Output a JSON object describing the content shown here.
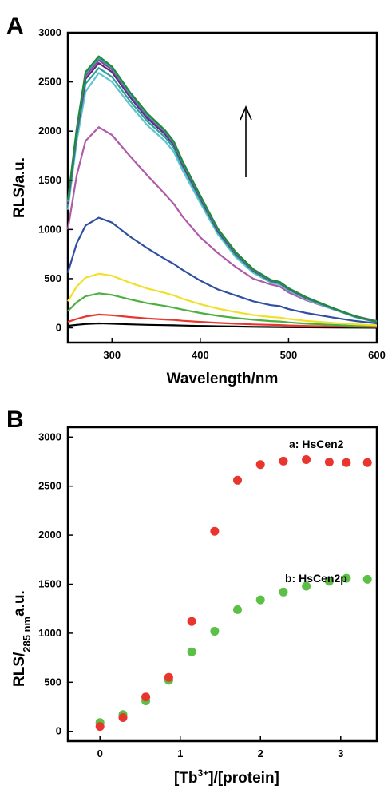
{
  "chart_data": [
    {
      "panel": "A",
      "type": "line",
      "xlabel": "Wavelength/nm",
      "ylabel": "RLS/a.u.",
      "xlim": [
        250,
        600
      ],
      "ylim": [
        -150,
        3000
      ],
      "xticks": [
        300,
        400,
        500,
        600
      ],
      "yticks": [
        0,
        500,
        1000,
        1500,
        2000,
        2500,
        3000
      ],
      "x": [
        250,
        260,
        270,
        285,
        300,
        320,
        340,
        360,
        370,
        380,
        400,
        420,
        440,
        460,
        480,
        490,
        500,
        520,
        550,
        575,
        600
      ],
      "series": [
        {
          "color": "#000000",
          "values": [
            20,
            30,
            38,
            45,
            42,
            35,
            30,
            27,
            25,
            23,
            19,
            16,
            13,
            10,
            8,
            7,
            6,
            5,
            3,
            2,
            1
          ]
        },
        {
          "color": "#e8352e",
          "values": [
            60,
            90,
            115,
            135,
            128,
            110,
            95,
            85,
            80,
            72,
            60,
            50,
            42,
            34,
            30,
            28,
            24,
            19,
            14,
            10,
            7
          ]
        },
        {
          "color": "#4caf3f",
          "values": [
            170,
            260,
            320,
            350,
            335,
            290,
            250,
            222,
            205,
            185,
            150,
            122,
            100,
            82,
            68,
            64,
            55,
            42,
            30,
            20,
            14
          ]
        },
        {
          "color": "#f0e02a",
          "values": [
            270,
            420,
            510,
            550,
            530,
            460,
            400,
            355,
            330,
            295,
            240,
            195,
            160,
            130,
            110,
            104,
            90,
            70,
            50,
            35,
            25
          ]
        },
        {
          "color": "#2f4fa0",
          "values": [
            560,
            860,
            1040,
            1120,
            1070,
            930,
            810,
            700,
            650,
            590,
            480,
            390,
            330,
            270,
            230,
            220,
            190,
            150,
            105,
            70,
            45
          ]
        },
        {
          "color": "#b05aa8",
          "values": [
            1000,
            1550,
            1900,
            2040,
            1960,
            1750,
            1550,
            1360,
            1260,
            1130,
            920,
            760,
            620,
            500,
            440,
            420,
            360,
            280,
            190,
            120,
            70
          ]
        },
        {
          "color": "#5dc5cc",
          "values": [
            1200,
            1900,
            2400,
            2590,
            2500,
            2270,
            2060,
            1900,
            1790,
            1600,
            1270,
            950,
            720,
            560,
            460,
            440,
            380,
            290,
            190,
            110,
            55
          ]
        },
        {
          "color": "#2c9f9f",
          "values": [
            1240,
            1950,
            2480,
            2640,
            2550,
            2310,
            2100,
            1940,
            1830,
            1640,
            1300,
            970,
            740,
            575,
            470,
            450,
            390,
            300,
            195,
            115,
            58
          ]
        },
        {
          "color": "#5a2a7a",
          "values": [
            1260,
            1980,
            2530,
            2690,
            2600,
            2350,
            2130,
            1970,
            1860,
            1660,
            1320,
            985,
            755,
            585,
            478,
            458,
            396,
            305,
            198,
            117,
            59
          ]
        },
        {
          "color": "#8e3fa0",
          "values": [
            1275,
            2000,
            2560,
            2720,
            2625,
            2370,
            2150,
            1990,
            1875,
            1675,
            1330,
            995,
            762,
            590,
            482,
            462,
            400,
            308,
            200,
            118,
            60
          ]
        },
        {
          "color": "#3aa3a8",
          "values": [
            1285,
            2015,
            2580,
            2740,
            2640,
            2385,
            2165,
            2000,
            1885,
            1685,
            1338,
            1000,
            767,
            594,
            485,
            465,
            402,
            310,
            201,
            119,
            60
          ]
        },
        {
          "color": "#1f8a3a",
          "values": [
            1295,
            2030,
            2600,
            2760,
            2655,
            2400,
            2180,
            2010,
            1895,
            1695,
            1345,
            1006,
            772,
            598,
            488,
            468,
            404,
            312,
            202,
            120,
            61
          ]
        }
      ]
    },
    {
      "panel": "B",
      "type": "scatter",
      "xlabel_main": "[Tb",
      "xlabel_sup": "3+",
      "xlabel_rest": "]/[protein]",
      "ylabel_main": "RLS/",
      "ylabel_sub": "285 nm",
      "ylabel_rest": "a.u.",
      "xlim": [
        -0.4,
        3.45
      ],
      "ylim": [
        -100,
        3100
      ],
      "xticks": [
        0,
        1,
        2,
        3
      ],
      "yticks": [
        0,
        500,
        1000,
        1500,
        2000,
        2500,
        3000
      ],
      "series": [
        {
          "name": "a: HsCen2",
          "color": "#e8352e",
          "x": [
            0,
            0.286,
            0.571,
            0.857,
            1.143,
            1.429,
            1.714,
            2.0,
            2.286,
            2.571,
            2.857,
            3.071,
            3.333
          ],
          "values": [
            50,
            140,
            350,
            550,
            1120,
            2040,
            2560,
            2720,
            2755,
            2770,
            2745,
            2740,
            2740
          ]
        },
        {
          "name": "b: HsCen2p",
          "color": "#5cbf46",
          "x": [
            0,
            0.286,
            0.571,
            0.857,
            1.143,
            1.429,
            1.714,
            2.0,
            2.286,
            2.571,
            2.857,
            3.071,
            3.333
          ],
          "values": [
            90,
            170,
            310,
            520,
            810,
            1020,
            1240,
            1340,
            1420,
            1480,
            1530,
            1560,
            1550
          ]
        }
      ]
    }
  ],
  "panels": {
    "a_letter": "A",
    "b_letter": "B",
    "arrow_icon": "up-arrow-icon"
  }
}
